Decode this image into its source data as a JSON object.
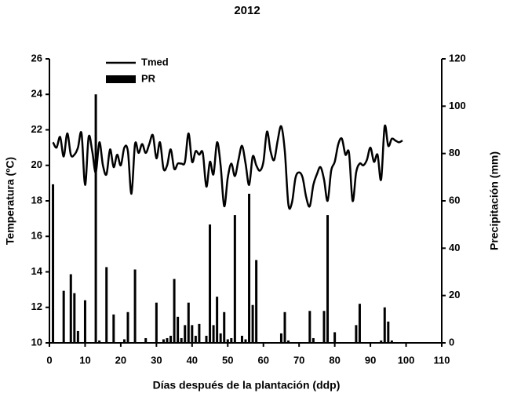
{
  "chart_data": {
    "type": "line-bar",
    "title": "2012",
    "x_label": "Días después de la plantación (ddp)",
    "y_label": "Temperatura (ºC)",
    "y2_label": "Precipitación (mm)",
    "xlim": [
      0,
      110
    ],
    "xticks": [
      0,
      10,
      20,
      30,
      40,
      50,
      60,
      70,
      80,
      90,
      100,
      110
    ],
    "ylim": [
      10,
      26
    ],
    "yticks": [
      10,
      12,
      14,
      16,
      18,
      20,
      22,
      24,
      26
    ],
    "y2lim": [
      0,
      120
    ],
    "y2ticks": [
      0,
      20,
      40,
      60,
      80,
      100,
      120
    ],
    "legend": "upper-left",
    "series": [
      {
        "name": "Tmed",
        "type": "line",
        "color": "#000000",
        "x": [
          1,
          2,
          3,
          4,
          5,
          6,
          7,
          8,
          9,
          10,
          11,
          12,
          13,
          14,
          15,
          16,
          17,
          18,
          19,
          20,
          21,
          22,
          23,
          24,
          25,
          26,
          27,
          28,
          29,
          30,
          31,
          32,
          33,
          34,
          35,
          36,
          37,
          38,
          39,
          40,
          41,
          42,
          43,
          44,
          45,
          46,
          47,
          48,
          49,
          50,
          51,
          52,
          53,
          54,
          55,
          56,
          57,
          58,
          59,
          60,
          61,
          62,
          63,
          64,
          65,
          66,
          67,
          68,
          69,
          70,
          71,
          72,
          73,
          74,
          75,
          76,
          77,
          78,
          79,
          80,
          81,
          82,
          83,
          84,
          85,
          86,
          87,
          88,
          89,
          90,
          91,
          92,
          93,
          94,
          95,
          96,
          97,
          98,
          99
        ],
        "values": [
          21.3,
          21.0,
          21.6,
          20.5,
          21.8,
          20.6,
          20.6,
          21.0,
          21.8,
          18.9,
          21.6,
          20.8,
          19.6,
          21.3,
          20.0,
          19.5,
          20.9,
          19.9,
          20.6,
          20.0,
          21.0,
          20.8,
          18.4,
          21.2,
          20.7,
          21.2,
          20.7,
          21.2,
          21.7,
          20.4,
          21.3,
          19.8,
          20.0,
          20.9,
          19.8,
          20.1,
          20.1,
          20.2,
          21.8,
          20.2,
          20.8,
          20.6,
          20.7,
          18.8,
          20.2,
          19.5,
          21.3,
          20.0,
          17.7,
          19.3,
          20.1,
          19.4,
          20.3,
          21.1,
          20.1,
          18.9,
          20.5,
          20.0,
          19.7,
          20.2,
          21.9,
          20.8,
          20.3,
          21.4,
          22.2,
          20.8,
          17.8,
          17.9,
          19.3,
          19.6,
          19.3,
          18.2,
          17.7,
          18.9,
          19.5,
          19.9,
          19.2,
          18.0,
          19.7,
          20.2,
          21.2,
          21.5,
          20.6,
          20.7,
          18.0,
          19.6,
          20.1,
          20.0,
          20.3,
          21.0,
          20.2,
          20.6,
          19.2,
          22.2,
          21.1,
          21.5,
          21.4,
          21.3,
          21.4
        ]
      },
      {
        "name": "PR",
        "type": "bar",
        "axis": "y2",
        "color": "#000000",
        "x": [
          1,
          4,
          6,
          7,
          8,
          10,
          13,
          14,
          16,
          18,
          21,
          22,
          24,
          27,
          30,
          32,
          33,
          34,
          35,
          36,
          37,
          38,
          39,
          40,
          41,
          42,
          44,
          45,
          46,
          47,
          48,
          49,
          50,
          51,
          52,
          54,
          55,
          56,
          57,
          58,
          65,
          66,
          67,
          73,
          74,
          77,
          78,
          80,
          86,
          87,
          93,
          94,
          95,
          96
        ],
        "values": [
          67,
          22,
          29,
          21,
          5,
          18,
          105,
          1,
          32,
          12,
          1.5,
          13,
          31,
          2,
          17,
          1.5,
          2,
          3,
          27,
          11,
          2,
          7.5,
          17,
          7.5,
          3,
          8,
          3,
          50,
          7.5,
          19.5,
          4,
          13,
          1.5,
          2,
          54,
          3,
          1.5,
          63,
          16,
          35,
          4,
          13,
          1,
          13.5,
          2,
          13.5,
          54,
          4.5,
          7.5,
          16.5,
          1,
          15,
          9,
          1
        ]
      }
    ]
  }
}
